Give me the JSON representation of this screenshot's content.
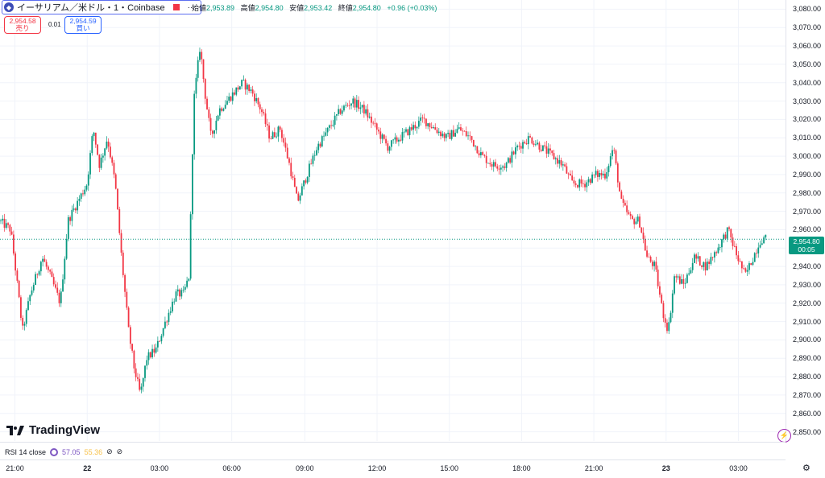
{
  "header": {
    "symbol_title": "イーサリアム／米ドル・1・Coinbase",
    "more_icon": "more-dots-icon",
    "ohlc": [
      {
        "label": "始値",
        "value": "2,953.89"
      },
      {
        "label": "高値",
        "value": "2,954.80"
      },
      {
        "label": "安値",
        "value": "2,953.42"
      },
      {
        "label": "終値",
        "value": "2,954.80"
      },
      {
        "label": "",
        "value": "+0.96 (+0.03%)"
      }
    ]
  },
  "trade": {
    "sell_price": "2,954.58",
    "sell_label": "売り",
    "spread": "0.01",
    "buy_price": "2,954.59",
    "buy_label": "買い"
  },
  "last_price": {
    "price": "2,954.80",
    "countdown": "00:05"
  },
  "branding": {
    "logo_text": "TradingView"
  },
  "rsi": {
    "label": "RSI 14 close",
    "value1": "57.05",
    "value2": "55.36"
  },
  "colors": {
    "up": "#089981",
    "down": "#f23645",
    "last_line": "#089981",
    "rsi1": "#7e57c2",
    "rsi2": "#f7c14a",
    "grid": "#f0f3fa"
  },
  "chart_data": {
    "type": "candlestick",
    "ylim": [
      2845,
      3085
    ],
    "y_ticks": [
      2850,
      2860,
      2870,
      2880,
      2890,
      2900,
      2910,
      2920,
      2930,
      2940,
      2950,
      2960,
      2970,
      2980,
      2990,
      3000,
      3010,
      3020,
      3030,
      3040,
      3050,
      3060,
      3070,
      3080
    ],
    "y_tick_labels": [
      "2,850.00",
      "2,860.00",
      "2,870.00",
      "2,880.00",
      "2,890.00",
      "2,900.00",
      "2,910.00",
      "2,920.00",
      "2,930.00",
      "2,940.00",
      "2,950.00",
      "2,960.00",
      "2,970.00",
      "2,980.00",
      "2,990.00",
      "3,000.00",
      "3,010.00",
      "3,020.00",
      "3,030.00",
      "3,040.00",
      "3,050.00",
      "3,060.00",
      "3,070.00",
      "3,080.00"
    ],
    "x_ticks": [
      {
        "label": "21:00",
        "pos": 0.019,
        "bold": false
      },
      {
        "label": "22",
        "pos": 0.111,
        "bold": true
      },
      {
        "label": "03:00",
        "pos": 0.203,
        "bold": false
      },
      {
        "label": "06:00",
        "pos": 0.295,
        "bold": false
      },
      {
        "label": "09:00",
        "pos": 0.388,
        "bold": false
      },
      {
        "label": "12:00",
        "pos": 0.48,
        "bold": false
      },
      {
        "label": "15:00",
        "pos": 0.572,
        "bold": false
      },
      {
        "label": "18:00",
        "pos": 0.664,
        "bold": false
      },
      {
        "label": "21:00",
        "pos": 0.756,
        "bold": false
      },
      {
        "label": "23",
        "pos": 0.848,
        "bold": true
      },
      {
        "label": "03:00",
        "pos": 0.94,
        "bold": false
      }
    ],
    "path": [
      [
        0.0,
        2965
      ],
      [
        0.015,
        2960
      ],
      [
        0.022,
        2935
      ],
      [
        0.03,
        2905
      ],
      [
        0.04,
        2925
      ],
      [
        0.055,
        2945
      ],
      [
        0.065,
        2935
      ],
      [
        0.078,
        2920
      ],
      [
        0.088,
        2965
      ],
      [
        0.1,
        2975
      ],
      [
        0.112,
        2985
      ],
      [
        0.12,
        3015
      ],
      [
        0.128,
        2995
      ],
      [
        0.138,
        3010
      ],
      [
        0.148,
        2985
      ],
      [
        0.156,
        2945
      ],
      [
        0.165,
        2905
      ],
      [
        0.172,
        2885
      ],
      [
        0.18,
        2870
      ],
      [
        0.188,
        2890
      ],
      [
        0.2,
        2895
      ],
      [
        0.212,
        2910
      ],
      [
        0.225,
        2925
      ],
      [
        0.235,
        2925
      ],
      [
        0.242,
        2935
      ],
      [
        0.248,
        3030
      ],
      [
        0.256,
        3060
      ],
      [
        0.262,
        3035
      ],
      [
        0.27,
        3010
      ],
      [
        0.28,
        3025
      ],
      [
        0.29,
        3030
      ],
      [
        0.3,
        3035
      ],
      [
        0.31,
        3040
      ],
      [
        0.322,
        3035
      ],
      [
        0.334,
        3025
      ],
      [
        0.345,
        3010
      ],
      [
        0.358,
        3015
      ],
      [
        0.37,
        2995
      ],
      [
        0.38,
        2975
      ],
      [
        0.392,
        2990
      ],
      [
        0.405,
        3005
      ],
      [
        0.42,
        3015
      ],
      [
        0.435,
        3025
      ],
      [
        0.45,
        3030
      ],
      [
        0.465,
        3025
      ],
      [
        0.48,
        3015
      ],
      [
        0.495,
        3005
      ],
      [
        0.51,
        3010
      ],
      [
        0.525,
        3015
      ],
      [
        0.54,
        3020
      ],
      [
        0.555,
        3015
      ],
      [
        0.57,
        3010
      ],
      [
        0.585,
        3015
      ],
      [
        0.6,
        3010
      ],
      [
        0.615,
        3000
      ],
      [
        0.63,
        2995
      ],
      [
        0.645,
        2995
      ],
      [
        0.66,
        3005
      ],
      [
        0.675,
        3010
      ],
      [
        0.69,
        3005
      ],
      [
        0.705,
        3000
      ],
      [
        0.718,
        2995
      ],
      [
        0.73,
        2985
      ],
      [
        0.745,
        2985
      ],
      [
        0.76,
        2990
      ],
      [
        0.772,
        2990
      ],
      [
        0.782,
        3005
      ],
      [
        0.792,
        2975
      ],
      [
        0.805,
        2965
      ],
      [
        0.815,
        2965
      ],
      [
        0.825,
        2945
      ],
      [
        0.835,
        2940
      ],
      [
        0.845,
        2915
      ],
      [
        0.852,
        2905
      ],
      [
        0.86,
        2935
      ],
      [
        0.872,
        2930
      ],
      [
        0.885,
        2945
      ],
      [
        0.9,
        2940
      ],
      [
        0.915,
        2950
      ],
      [
        0.928,
        2960
      ],
      [
        0.94,
        2945
      ],
      [
        0.95,
        2935
      ],
      [
        0.96,
        2945
      ],
      [
        0.97,
        2955
      ],
      [
        0.976,
        2955
      ]
    ],
    "last_price": 2954.8
  }
}
